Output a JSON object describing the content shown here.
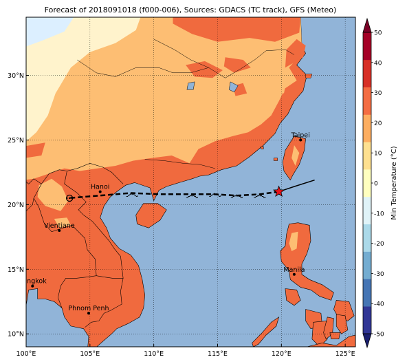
{
  "title": "Forecast of 2018091018 (f000-006), Sources: GDACS (TC track), GFS (Meteo)",
  "map": {
    "lon_range": [
      100,
      125.8
    ],
    "lat_range": [
      9,
      34.5
    ],
    "lon_ticks": [
      {
        "value": 100,
        "label": "100°E"
      },
      {
        "value": 105,
        "label": "105°E"
      },
      {
        "value": 110,
        "label": "110°E"
      },
      {
        "value": 115,
        "label": "115°E"
      },
      {
        "value": 120,
        "label": "120°E"
      },
      {
        "value": 125,
        "label": "125°E"
      }
    ],
    "lat_ticks": [
      {
        "value": 10,
        "label": "10°N"
      },
      {
        "value": 15,
        "label": "15°N"
      },
      {
        "value": 20,
        "label": "20°N"
      },
      {
        "value": 25,
        "label": "25°N"
      },
      {
        "value": 30,
        "label": "30°N"
      }
    ],
    "grid": true,
    "colors": {
      "ocean": "#91b4d8",
      "warm_land": "#fdbe73",
      "hot_land": "#f06a3e",
      "pale_land": "#fff3cc",
      "cold_land": "#dcefff",
      "borders": "#000000"
    }
  },
  "cities": [
    {
      "name": "Hanoi",
      "lon": 105.8,
      "lat": 21.0
    },
    {
      "name": "Vientiane",
      "lon": 102.6,
      "lat": 18.0
    },
    {
      "name": "Bangkok",
      "lon": 100.5,
      "lat": 13.7
    },
    {
      "name": "Phnom Penh",
      "lon": 104.9,
      "lat": 11.6
    },
    {
      "name": "Taipei",
      "lon": 121.5,
      "lat": 25.0
    },
    {
      "name": "Manila",
      "lon": 121.0,
      "lat": 14.6
    }
  ],
  "track": {
    "observed": [
      [
        122.6,
        21.9
      ],
      [
        121.0,
        21.4
      ],
      [
        119.8,
        21.0
      ]
    ],
    "current": [
      119.8,
      21.0
    ],
    "forecast": [
      [
        119.8,
        21.0
      ],
      [
        118.3,
        20.8
      ],
      [
        116.5,
        20.7
      ],
      [
        114.7,
        20.8
      ],
      [
        112.9,
        20.8
      ],
      [
        110.5,
        20.8
      ],
      [
        108.2,
        20.9
      ],
      [
        105.8,
        20.7
      ],
      [
        103.2,
        20.5
      ]
    ],
    "storm_symbols": [
      [
        118.3,
        20.8
      ],
      [
        116.5,
        20.8
      ],
      [
        114.8,
        20.9
      ],
      [
        113.0,
        20.8
      ],
      [
        108.3,
        20.9
      ]
    ],
    "end_point": [
      103.4,
      20.5
    ]
  },
  "colorbar": {
    "label": "Min Temperature (°C)",
    "ticks": [
      -50,
      -40,
      -30,
      -20,
      -10,
      0,
      10,
      20,
      30,
      40,
      50
    ],
    "bands": [
      "#313695",
      "#4575b4",
      "#74add1",
      "#abd9e9",
      "#e0f3f8",
      "#ffffbf",
      "#fee090",
      "#fdae61",
      "#f46d43",
      "#d73027",
      "#a50026"
    ],
    "extend_low": "#1a1f6e",
    "extend_high": "#7a0026"
  }
}
